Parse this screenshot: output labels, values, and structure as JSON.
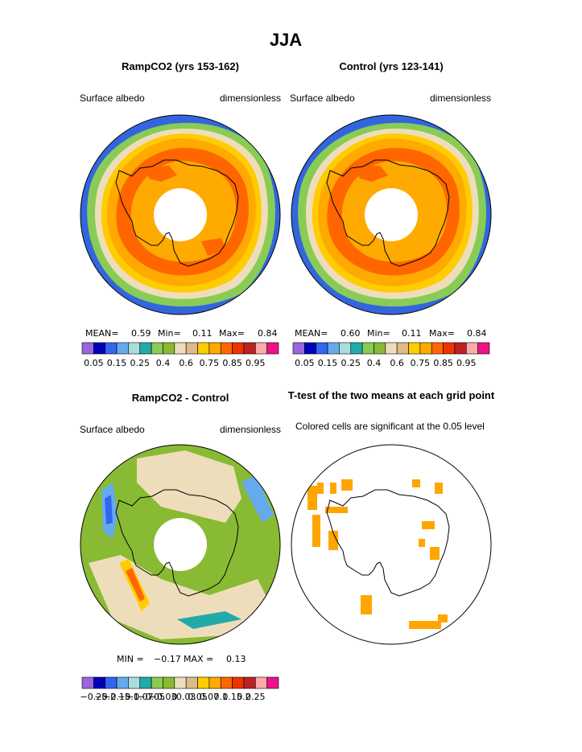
{
  "page_title": "JJA",
  "panels": {
    "rampco2": {
      "title": "RampCO2 (yrs 153-162)",
      "left_label": "Surface albedo",
      "right_label": "dimensionless",
      "stats": {
        "mean_label": "MEAN=",
        "mean": "0.59",
        "min_label": "Min=",
        "min": "0.11",
        "max_label": "Max=",
        "max": "0.84"
      }
    },
    "control": {
      "title": "Control (yrs 123-141)",
      "left_label": "Surface albedo",
      "right_label": "dimensionless",
      "stats": {
        "mean_label": "MEAN=",
        "mean": "0.60",
        "min_label": "Min=",
        "min": "0.11",
        "max_label": "Max=",
        "max": "0.84"
      }
    },
    "difference": {
      "title": "RampCO2 - Control",
      "left_label": "Surface albedo",
      "right_label": "dimensionless",
      "stats": {
        "min_label": "MIN =",
        "min": "−0.17",
        "max_label": "MAX =",
        "max": "0.13"
      }
    },
    "ttest": {
      "title": "T-test of the two means at each grid point",
      "subtitle": "Colored cells are significant at the 0.05 level"
    }
  },
  "chart_data": [
    {
      "type": "heatmap",
      "projection": "south polar stereographic",
      "panel": "rampco2",
      "colorbar": {
        "colors": [
          "#9966dd",
          "#0000bb",
          "#3366ee",
          "#66aaee",
          "#aadddd",
          "#22aaaa",
          "#88cc55",
          "#88bb33",
          "#eeddbb",
          "#ddbb88",
          "#ffcc00",
          "#ffaa00",
          "#ff6600",
          "#ee3300",
          "#bb2222",
          "#ffaaaa",
          "#ee1188"
        ],
        "tick_labels": [
          "0.05",
          "0.15",
          "0.25",
          "0.4",
          "0.6",
          "0.75",
          "0.85",
          "0.95"
        ]
      }
    },
    {
      "type": "heatmap",
      "projection": "south polar stereographic",
      "panel": "control",
      "colorbar": {
        "colors": [
          "#9966dd",
          "#0000bb",
          "#3366ee",
          "#66aaee",
          "#aadddd",
          "#22aaaa",
          "#88cc55",
          "#88bb33",
          "#eeddbb",
          "#ddbb88",
          "#ffcc00",
          "#ffaa00",
          "#ff6600",
          "#ee3300",
          "#bb2222",
          "#ffaaaa",
          "#ee1188"
        ],
        "tick_labels": [
          "0.05",
          "0.15",
          "0.25",
          "0.4",
          "0.6",
          "0.75",
          "0.85",
          "0.95"
        ]
      }
    },
    {
      "type": "heatmap",
      "projection": "south polar stereographic",
      "panel": "difference",
      "colorbar": {
        "colors": [
          "#9966dd",
          "#0000bb",
          "#3366ee",
          "#66aaee",
          "#aadddd",
          "#22aaaa",
          "#88cc55",
          "#88bb33",
          "#eeddbb",
          "#ddbb88",
          "#ffcc00",
          "#ffaa00",
          "#ff6600",
          "#ee3300",
          "#bb2222",
          "#ffaaaa",
          "#ee1188"
        ],
        "tick_labels": [
          "−0.25",
          "−0.2",
          "−0.15",
          "−0.1",
          "−0.07",
          "−0.05",
          "−0.03",
          "0",
          "0.03",
          "0.05",
          "0.07",
          "0.1",
          "0.15",
          "0.2",
          "0.25"
        ]
      }
    },
    {
      "type": "heatmap",
      "projection": "south polar stereographic",
      "panel": "ttest",
      "significant_color": "#ffa500"
    }
  ]
}
